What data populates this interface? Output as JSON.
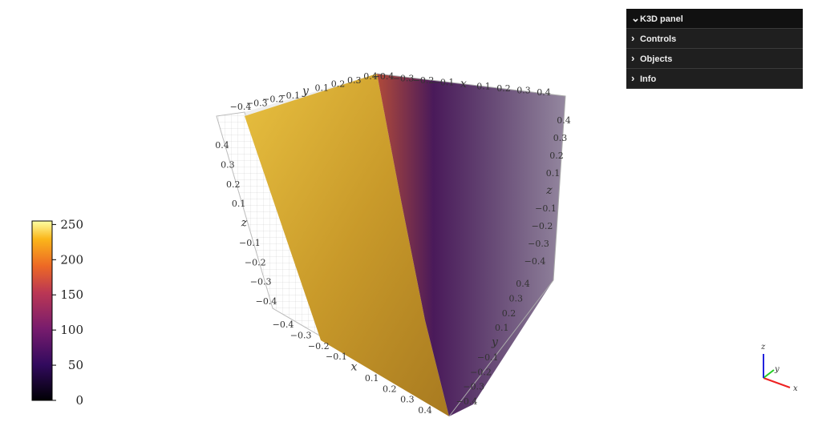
{
  "panel": {
    "title": "K3D panel",
    "items": [
      "Controls",
      "Objects",
      "Info"
    ]
  },
  "colorbar": {
    "lim": [
      0,
      255
    ],
    "ticks": [
      0,
      50,
      100,
      150,
      200,
      250
    ]
  },
  "axes": [
    {
      "labels": [
        "−0.4",
        "−0.3",
        "−0.2",
        "−0.1",
        "y",
        "0.1",
        "0.2",
        "0.3",
        "0.4"
      ]
    },
    {
      "labels": [
        "−0.4",
        "−0.3",
        "−0.2",
        "−0.1",
        "x",
        "0.1",
        "0.2",
        "0.3",
        "0.4"
      ]
    },
    {
      "labels": [
        "0.4",
        "0.3",
        "0.2",
        "0.1",
        "z",
        "−0.1",
        "−0.2",
        "−0.3",
        "−0.4"
      ]
    },
    {
      "labels": [
        "0.4",
        "0.3",
        "0.2",
        "0.1",
        "z",
        "−0.1",
        "−0.2",
        "−0.3",
        "−0.4"
      ]
    },
    {
      "labels": [
        "−0.4",
        "−0.3",
        "−0.2",
        "−0.1",
        "x",
        "0.1",
        "0.2",
        "0.3",
        "0.4"
      ]
    },
    {
      "labels": [
        "0.4",
        "0.3",
        "0.2",
        "0.1",
        "y",
        "−0.1",
        "−0.2",
        "−0.3",
        "−0.4"
      ]
    }
  ],
  "triad": {
    "x": "x",
    "y": "y",
    "z": "z"
  }
}
